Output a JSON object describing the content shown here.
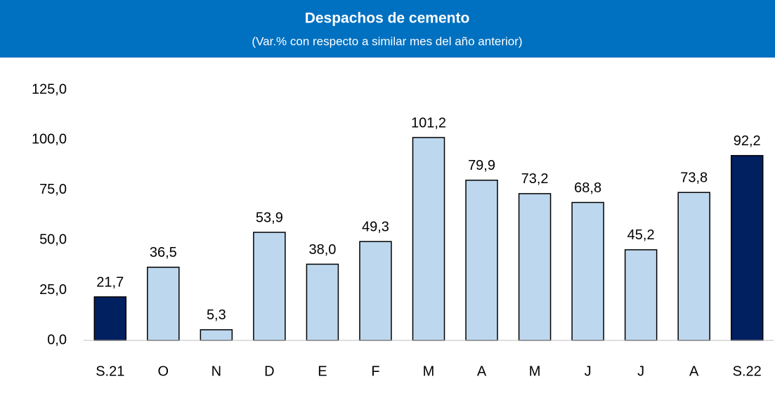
{
  "chart_data": {
    "type": "bar",
    "title": "Despachos de cemento",
    "subtitle": "(Var.% con respecto a similar mes del año anterior)",
    "categories": [
      "S.21",
      "O",
      "N",
      "D",
      "E",
      "F",
      "M",
      "A",
      "M",
      "J",
      "J",
      "A",
      "S.22"
    ],
    "values": [
      21.7,
      36.5,
      5.3,
      53.9,
      38.0,
      49.3,
      101.2,
      79.9,
      73.2,
      68.8,
      45.2,
      73.8,
      92.2
    ],
    "value_labels": [
      "21,7",
      "36,5",
      "5,3",
      "53,9",
      "38,0",
      "49,3",
      "101,2",
      "79,9",
      "73,2",
      "68,8",
      "45,2",
      "73,8",
      "92,2"
    ],
    "colors": [
      "#002060",
      "#bdd7ee",
      "#bdd7ee",
      "#bdd7ee",
      "#bdd7ee",
      "#bdd7ee",
      "#bdd7ee",
      "#bdd7ee",
      "#bdd7ee",
      "#bdd7ee",
      "#bdd7ee",
      "#bdd7ee",
      "#002060"
    ],
    "ylim": [
      0,
      125
    ],
    "yticks": [
      {
        "value": 0,
        "label": "0,0"
      },
      {
        "value": 25,
        "label": "25,0"
      },
      {
        "value": 50,
        "label": "50,0"
      },
      {
        "value": 75,
        "label": "75,0"
      },
      {
        "value": 100,
        "label": "100,0"
      },
      {
        "value": 125,
        "label": "125,0"
      }
    ],
    "grid": false
  }
}
